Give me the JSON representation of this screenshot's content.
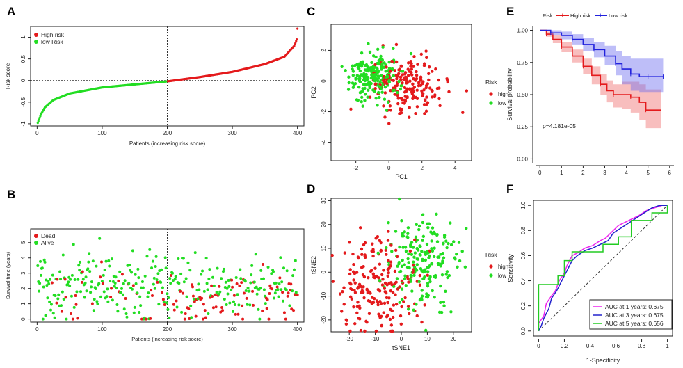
{
  "chart_data": [
    {
      "id": "A",
      "type": "scatter",
      "panel_label": "A",
      "title": "",
      "xlabel": "Patients (increasing risk socre)",
      "ylabel": "Risk score",
      "xlim": [
        -10,
        410
      ],
      "ylim": [
        -1.05,
        1.25
      ],
      "xticks": [
        0,
        100,
        200,
        300,
        400
      ],
      "yticks": [
        -1.0,
        -0.5,
        0.0,
        0.5,
        1.0
      ],
      "cutoff_x": 200,
      "cutoff_y": 0.0,
      "n_points": 400,
      "series": [
        {
          "name": "High risk",
          "color": "#e41a1c",
          "range": [
            201,
            400
          ]
        },
        {
          "name": "low Risk",
          "color": "#22dd22",
          "range": [
            1,
            200
          ]
        }
      ],
      "curve_anchors": [
        [
          1,
          -0.98
        ],
        [
          3,
          -0.9
        ],
        [
          6,
          -0.78
        ],
        [
          12,
          -0.62
        ],
        [
          25,
          -0.45
        ],
        [
          50,
          -0.3
        ],
        [
          100,
          -0.16
        ],
        [
          150,
          -0.09
        ],
        [
          200,
          -0.02
        ],
        [
          250,
          0.08
        ],
        [
          300,
          0.2
        ],
        [
          350,
          0.38
        ],
        [
          380,
          0.55
        ],
        [
          395,
          0.8
        ],
        [
          399,
          0.95
        ],
        [
          400,
          1.2
        ]
      ],
      "legend": [
        "High risk",
        "low Risk"
      ],
      "legend_position": "top-left"
    },
    {
      "id": "B",
      "type": "scatter",
      "panel_label": "B",
      "xlabel": "Patients (increasing risk socre)",
      "ylabel": "Survival time (years)",
      "xlim": [
        -10,
        410
      ],
      "ylim": [
        -0.2,
        5.9
      ],
      "xticks": [
        0,
        100,
        200,
        300,
        400
      ],
      "yticks": [
        0,
        1,
        2,
        3,
        4,
        5
      ],
      "cutoff_x": 200,
      "n_points": 400,
      "series": [
        {
          "name": "Dead",
          "color": "#e41a1c"
        },
        {
          "name": "Alive",
          "color": "#22dd22"
        }
      ],
      "legend": [
        "Dead",
        "Alive"
      ],
      "legend_position": "top-left"
    },
    {
      "id": "C",
      "type": "scatter",
      "panel_label": "C",
      "xlabel": "PC1",
      "ylabel": "PC2",
      "xlim": [
        -3.5,
        5.0
      ],
      "ylim": [
        -5.2,
        3.7
      ],
      "xticks": [
        -2,
        0,
        2,
        4
      ],
      "yticks": [
        -4,
        -2,
        0,
        2
      ],
      "series": [
        {
          "name": "high",
          "color": "#e41a1c",
          "center": [
            1.0,
            -0.3
          ],
          "spread": [
            1.1,
            0.9
          ],
          "n": 200
        },
        {
          "name": "low",
          "color": "#22dd22",
          "center": [
            -0.9,
            0.3
          ],
          "spread": [
            0.75,
            0.8
          ],
          "n": 200
        }
      ],
      "legend_title": "Risk",
      "legend": [
        "high",
        "low"
      ],
      "legend_position": "right"
    },
    {
      "id": "D",
      "type": "scatter",
      "panel_label": "D",
      "xlabel": "tSNE1",
      "ylabel": "tSNE2",
      "xlim": [
        -27,
        27
      ],
      "ylim": [
        -25,
        31
      ],
      "xticks": [
        -20,
        -10,
        0,
        10,
        20
      ],
      "yticks": [
        -20,
        -10,
        0,
        10,
        20,
        30
      ],
      "series": [
        {
          "name": "high",
          "color": "#e41a1c",
          "center": [
            -9,
            -5
          ],
          "spread": [
            8,
            10
          ],
          "n": 200
        },
        {
          "name": "low",
          "color": "#22dd22",
          "center": [
            8,
            5
          ],
          "spread": [
            7,
            10
          ],
          "n": 200
        }
      ],
      "legend_title": "Risk",
      "legend": [
        "high",
        "low"
      ],
      "legend_position": "right"
    },
    {
      "id": "E",
      "type": "line",
      "panel_label": "E",
      "xlabel": "",
      "ylabel": "Survival probability",
      "xlim": [
        -0.2,
        6.2
      ],
      "ylim": [
        -0.03,
        1.03
      ],
      "xticks": [
        0,
        1,
        2,
        3,
        4,
        5,
        6
      ],
      "yticks": [
        0.0,
        0.25,
        0.5,
        0.75,
        1.0
      ],
      "legend_title": "Risk",
      "legend": [
        "High risk",
        "Low risk"
      ],
      "legend_position": "top",
      "annotation": "p=4.181e-05",
      "series": [
        {
          "name": "High risk",
          "color": "#e41a1c",
          "fill": "rgba(240,110,110,0.45)",
          "x": [
            0,
            0.3,
            0.6,
            1.0,
            1.5,
            2.0,
            2.4,
            2.8,
            3.1,
            3.4,
            3.8,
            4.2,
            4.6,
            4.9,
            5.6
          ],
          "y": [
            1.0,
            0.97,
            0.93,
            0.87,
            0.8,
            0.72,
            0.65,
            0.58,
            0.53,
            0.5,
            0.5,
            0.48,
            0.44,
            0.38,
            0.38
          ],
          "ci_low": [
            1.0,
            0.95,
            0.9,
            0.83,
            0.75,
            0.66,
            0.58,
            0.5,
            0.44,
            0.4,
            0.39,
            0.36,
            0.3,
            0.24,
            0.24
          ],
          "ci_high": [
            1.0,
            0.99,
            0.96,
            0.91,
            0.85,
            0.78,
            0.72,
            0.66,
            0.61,
            0.58,
            0.6,
            0.6,
            0.58,
            0.54,
            0.54
          ]
        },
        {
          "name": "Low risk",
          "color": "#2222dd",
          "fill": "rgba(110,110,240,0.45)",
          "x": [
            0,
            0.5,
            1.0,
            1.5,
            2.0,
            2.5,
            3.0,
            3.5,
            3.8,
            4.2,
            4.6,
            5.0,
            5.4,
            5.7
          ],
          "y": [
            1.0,
            0.98,
            0.96,
            0.93,
            0.89,
            0.85,
            0.8,
            0.74,
            0.7,
            0.66,
            0.64,
            0.64,
            0.64,
            0.64
          ],
          "ci_low": [
            1.0,
            0.96,
            0.93,
            0.89,
            0.84,
            0.79,
            0.73,
            0.65,
            0.58,
            0.53,
            0.52,
            0.52,
            0.52,
            0.52
          ],
          "ci_high": [
            1.0,
            1.0,
            0.99,
            0.97,
            0.94,
            0.91,
            0.88,
            0.84,
            0.8,
            0.78,
            0.78,
            0.78,
            0.78,
            0.78
          ]
        }
      ]
    },
    {
      "id": "F",
      "type": "line",
      "panel_label": "F",
      "xlabel": "1-Specificity",
      "ylabel": "Sensitivity",
      "xlim": [
        -0.04,
        1.04
      ],
      "ylim": [
        -0.04,
        1.04
      ],
      "xticks": [
        0.0,
        0.2,
        0.4,
        0.6,
        0.8,
        1.0
      ],
      "yticks": [
        0.0,
        0.2,
        0.4,
        0.6,
        0.8,
        1.0
      ],
      "legend_position": "bottom-right",
      "series": [
        {
          "name": "AUC at 1 years: 0.675",
          "color": "#ee22ee",
          "x": [
            0,
            0,
            0.04,
            0.06,
            0.1,
            0.13,
            0.16,
            0.2,
            0.22,
            0.26,
            0.3,
            0.36,
            0.42,
            0.48,
            0.52,
            0.58,
            0.62,
            0.7,
            0.78,
            0.84,
            0.9,
            0.96,
            1.0
          ],
          "y": [
            0,
            0.06,
            0.12,
            0.22,
            0.28,
            0.32,
            0.4,
            0.46,
            0.52,
            0.6,
            0.62,
            0.66,
            0.68,
            0.72,
            0.74,
            0.8,
            0.84,
            0.88,
            0.92,
            0.96,
            0.98,
            1.0,
            1.0
          ]
        },
        {
          "name": "AUC at 3 years: 0.675",
          "color": "#2222cc",
          "x": [
            0,
            0.02,
            0.04,
            0.08,
            0.1,
            0.14,
            0.18,
            0.22,
            0.26,
            0.3,
            0.36,
            0.42,
            0.5,
            0.54,
            0.58,
            0.64,
            0.7,
            0.76,
            0.82,
            0.88,
            0.94,
            1.0
          ],
          "y": [
            0,
            0.04,
            0.1,
            0.18,
            0.26,
            0.32,
            0.4,
            0.48,
            0.56,
            0.6,
            0.64,
            0.66,
            0.7,
            0.72,
            0.78,
            0.82,
            0.86,
            0.9,
            0.94,
            0.98,
            1.0,
            1.0
          ]
        },
        {
          "name": "AUC at 5 years: 0.656",
          "color": "#22cc22",
          "x": [
            0,
            0,
            0.15,
            0.15,
            0.2,
            0.2,
            0.26,
            0.26,
            0.42,
            0.42,
            0.5,
            0.5,
            0.62,
            0.62,
            0.72,
            0.72,
            0.88,
            0.88,
            1.0,
            1.0
          ],
          "y": [
            0,
            0.37,
            0.37,
            0.44,
            0.44,
            0.56,
            0.56,
            0.63,
            0.63,
            0.63,
            0.63,
            0.69,
            0.69,
            0.75,
            0.75,
            0.88,
            0.88,
            0.94,
            0.94,
            1.0
          ]
        }
      ],
      "reference": {
        "name": "diagonal",
        "color": "#333333"
      }
    }
  ]
}
